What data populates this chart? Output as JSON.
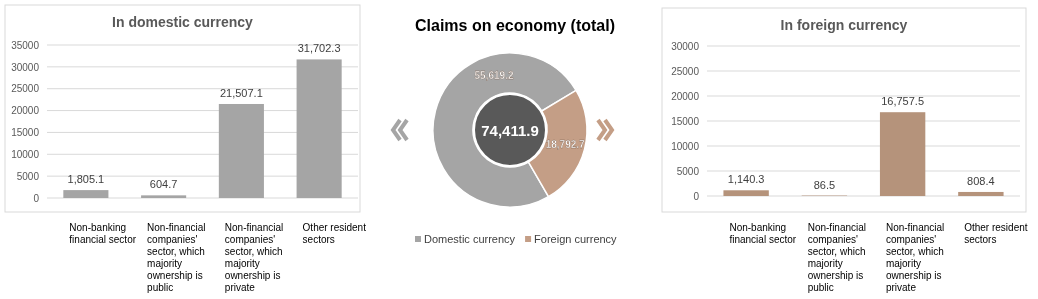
{
  "chart_data": [
    {
      "type": "bar",
      "title": "In domestic currency",
      "categories": [
        "Non-banking financial sector",
        "Non-financial companies' sector, which majority ownership is public",
        "Non-financial companies' sector, which majority ownership is private",
        "Other resident sectors"
      ],
      "values": [
        1805.1,
        604.7,
        21507.1,
        31702.3
      ],
      "value_labels": [
        "1,805.1",
        "604.7",
        "21,507.1",
        "31,702.3"
      ],
      "color": "#a5a5a5",
      "ylim": [
        0,
        35000
      ],
      "yticks": [
        0,
        5000,
        10000,
        15000,
        20000,
        25000,
        30000,
        35000
      ],
      "grid": "y"
    },
    {
      "type": "donut",
      "title": "Claims on economy (total)",
      "categories": [
        "Domestic currency",
        "Foreign currency"
      ],
      "values": [
        55619.2,
        18792.7
      ],
      "colors": [
        "#a5a5a5",
        "#c49e86"
      ],
      "value_labels": [
        "55,619.2",
        "18,792.7"
      ],
      "legend": "bottom",
      "annotations": [
        "74,411.9"
      ]
    },
    {
      "type": "bar",
      "title": "In foreign currency",
      "categories": [
        "Non-banking financial sector",
        "Non-financial companies' sector, which majority ownership is public",
        "Non-financial companies' sector, which majority ownership is private",
        "Other resident sectors"
      ],
      "values": [
        1140.3,
        86.5,
        16757.5,
        808.4
      ],
      "value_labels": [
        "1,140.3",
        "86.5",
        "16,757.5",
        "808.4"
      ],
      "color": "#b5937b",
      "ylim": [
        0,
        30000
      ],
      "yticks": [
        0,
        5000,
        10000,
        15000,
        20000,
        25000,
        30000
      ],
      "grid": "y"
    }
  ]
}
